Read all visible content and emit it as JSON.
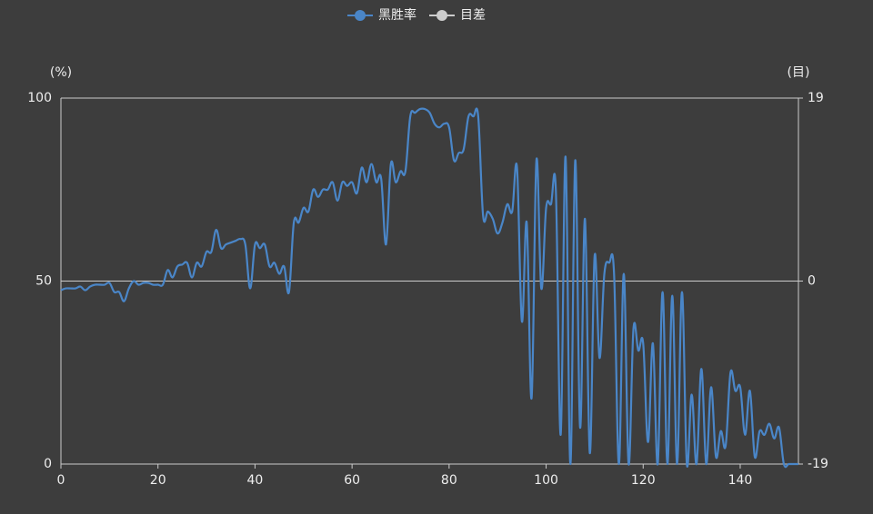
{
  "chart_data": {
    "type": "line",
    "legend_position": "top",
    "series": [
      {
        "name": "黑胜率",
        "color": "#4a86c8",
        "axis": "y",
        "values": [
          47.5,
          48,
          48,
          48,
          48.5,
          47.5,
          48.5,
          49,
          49,
          49,
          49.5,
          47,
          47,
          44.5,
          48,
          50,
          49,
          49.5,
          49.5,
          49,
          49,
          49,
          53,
          51,
          54,
          54.5,
          55,
          51,
          55,
          54,
          58,
          58,
          64,
          59,
          60,
          60.5,
          61,
          61.5,
          60,
          48,
          60,
          59,
          60,
          54,
          55,
          52,
          54,
          47,
          66,
          66,
          70,
          69,
          75,
          73,
          75,
          75,
          77,
          72,
          77,
          76,
          77,
          74,
          81,
          77,
          82,
          77,
          78,
          60,
          82,
          77,
          80,
          80,
          95,
          96,
          97,
          97,
          96,
          93,
          92,
          93,
          92,
          83,
          85,
          86,
          95,
          95,
          95,
          68,
          69,
          67,
          63,
          66,
          71,
          69,
          81,
          39,
          66,
          18,
          83,
          48,
          70,
          71,
          75,
          8,
          84,
          0,
          83,
          10,
          67,
          3,
          57,
          29,
          52,
          55,
          52,
          0,
          52,
          0,
          37,
          31,
          33,
          6,
          33,
          0,
          47,
          0,
          46,
          0,
          47,
          0,
          19,
          0,
          26,
          0,
          21,
          2,
          9,
          5,
          25,
          20,
          21,
          8,
          20,
          2,
          9,
          8,
          11,
          7,
          10,
          0,
          0,
          0,
          0
        ]
      },
      {
        "name": "目差",
        "color": "#cccccc",
        "axis": "y2",
        "visible": false
      }
    ],
    "x": [
      0,
      1,
      2,
      3,
      4,
      5,
      6,
      7,
      8,
      9,
      10,
      11,
      12,
      13,
      14,
      15,
      16,
      17,
      18,
      19,
      20,
      21,
      22,
      23,
      24,
      25,
      26,
      27,
      28,
      29,
      30,
      31,
      32,
      33,
      34,
      35,
      36,
      37,
      38,
      39,
      40,
      41,
      42,
      43,
      44,
      45,
      46,
      47,
      48,
      49,
      50,
      51,
      52,
      53,
      54,
      55,
      56,
      57,
      58,
      59,
      60,
      61,
      62,
      63,
      64,
      65,
      66,
      67,
      68,
      69,
      70,
      71,
      72,
      73,
      74,
      75,
      76,
      77,
      78,
      79,
      80,
      81,
      82,
      83,
      84,
      85,
      86,
      87,
      88,
      89,
      90,
      91,
      92,
      93,
      94,
      95,
      96,
      97,
      98,
      99,
      100,
      101,
      102,
      103,
      104,
      105,
      106,
      107,
      108,
      109,
      110,
      111,
      112,
      113,
      114,
      115,
      116,
      117,
      118,
      119,
      120,
      121,
      122,
      123,
      124,
      125,
      126,
      127,
      128,
      129,
      130,
      131,
      132,
      133,
      134,
      135,
      136,
      137,
      138,
      139,
      140,
      141,
      142,
      143,
      144,
      145,
      146,
      147,
      148,
      149,
      150,
      151,
      152
    ],
    "xlim": [
      0,
      152
    ],
    "xticks": [
      0,
      20,
      40,
      60,
      80,
      100,
      120,
      140
    ],
    "ylabel": "(%)",
    "ylim": [
      0,
      100
    ],
    "yticks": [
      0,
      50,
      100
    ],
    "y2label": "(目)",
    "y2lim": [
      -19,
      19
    ],
    "y2ticks": [
      -19,
      0,
      19
    ],
    "grid": true
  }
}
